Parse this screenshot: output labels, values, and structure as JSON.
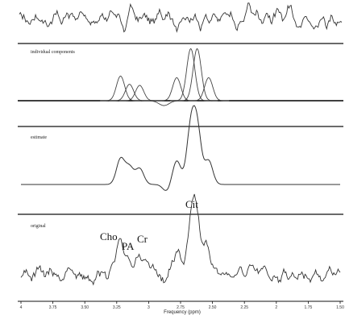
{
  "chart_data": {
    "type": "line",
    "xlabel": "Frequency (ppm)",
    "x_ticks": [
      "4",
      "3.75",
      "3.50",
      "3.25",
      "3",
      "2.75",
      "2.50",
      "2.25",
      "2",
      "1.75",
      "1.50"
    ],
    "xlim": [
      4.0,
      1.5
    ],
    "x_direction": "reversed",
    "grid": false,
    "panels": [
      {
        "label": "",
        "content": "residual noise trace"
      },
      {
        "label": "individual components",
        "content": "overlapping Gaussian components"
      },
      {
        "label": "estimate",
        "content": "fitted estimate"
      },
      {
        "label": "original",
        "content": "original spectrum"
      }
    ],
    "peak_labels": [
      {
        "text": "Cit",
        "ppm": 2.62
      },
      {
        "text": "Cho",
        "ppm": 3.2
      },
      {
        "text": "PA",
        "ppm": 3.12
      },
      {
        "text": "Cr",
        "ppm": 3.03
      }
    ],
    "components": [
      {
        "center_ppm": 3.22,
        "relative_height": 0.45
      },
      {
        "center_ppm": 3.15,
        "relative_height": 0.3
      },
      {
        "center_ppm": 3.07,
        "relative_height": 0.28
      },
      {
        "center_ppm": 2.78,
        "relative_height": 0.42
      },
      {
        "center_ppm": 2.67,
        "relative_height": 0.95
      },
      {
        "center_ppm": 2.62,
        "relative_height": 0.95
      },
      {
        "center_ppm": 2.53,
        "relative_height": 0.42
      }
    ]
  }
}
